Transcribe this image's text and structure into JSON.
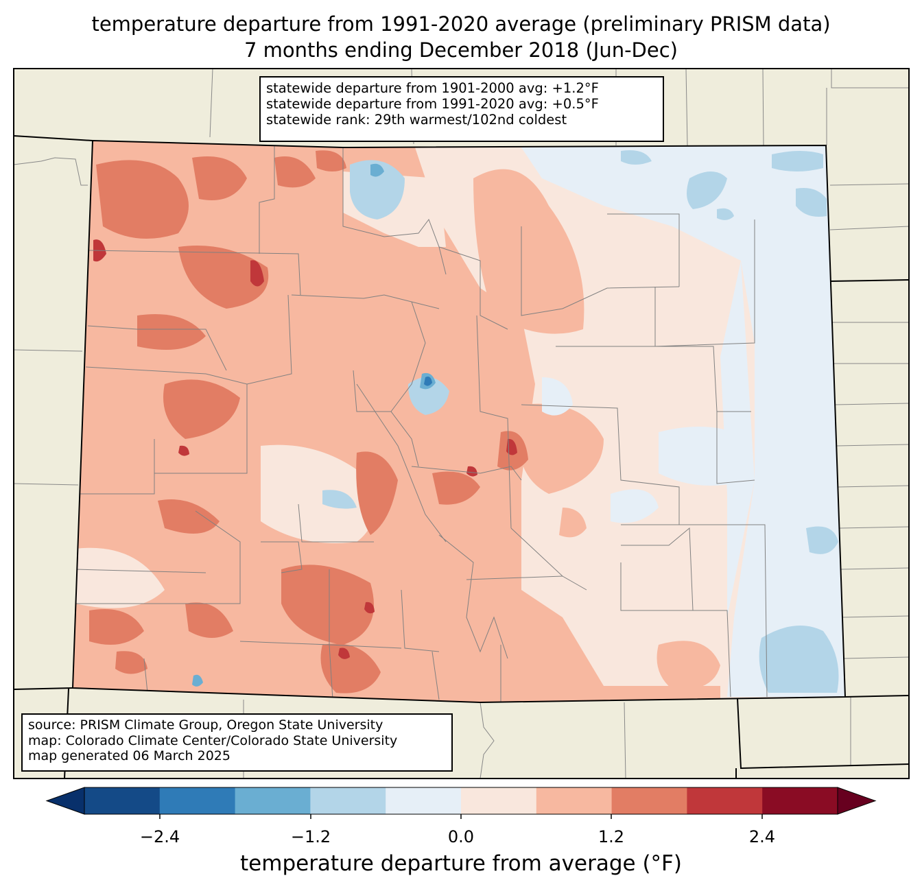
{
  "title": {
    "line1": "temperature departure from 1991-2020 average (preliminary PRISM data)",
    "line2": "7 months ending December 2018 (Jun-Dec)"
  },
  "stats": {
    "line1": "statewide departure from 1901-2000 avg: +1.2°F",
    "line2": "statewide departure from 1991-2020 avg: +0.5°F",
    "line3": "statewide rank: 29th warmest/102nd coldest"
  },
  "credits": {
    "line1": "source: PRISM Climate Group, Oregon State University",
    "line2": "map: Colorado Climate Center/Colorado State University",
    "line3": "map generated 06 March 2025"
  },
  "colorbar": {
    "label": "temperature departure from average (°F)",
    "ticks": [
      "−2.4",
      "−1.2",
      "0.0",
      "1.2",
      "2.4"
    ],
    "levels": [
      -3.0,
      -2.4,
      -1.8,
      -1.2,
      -0.6,
      0.0,
      0.6,
      1.2,
      1.8,
      2.4,
      3.0
    ],
    "colors": [
      "#08306b",
      "#144a87",
      "#2f7bb7",
      "#6aaed2",
      "#b3d5e8",
      "#e6eff7",
      "#f9e7dd",
      "#f7b8a0",
      "#e27d64",
      "#c0373a",
      "#8a0c24",
      "#67001f"
    ]
  },
  "map": {
    "background_color": "#efeddc",
    "region": "Colorado"
  }
}
